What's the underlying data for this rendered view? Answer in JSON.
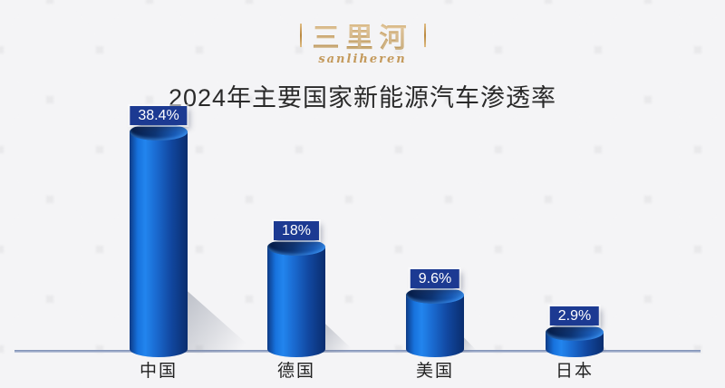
{
  "logo": {
    "cn": "三里河",
    "en": "sanliheren",
    "accent_gold": "#c59a58"
  },
  "chart_data": {
    "type": "bar",
    "title": "2024年主要国家新能源汽车渗透率",
    "categories": [
      "中国",
      "德国",
      "美国",
      "日本"
    ],
    "values": [
      38.4,
      18,
      9.6,
      2.9
    ],
    "value_labels": [
      "38.4%",
      "18%",
      "9.6%",
      "2.9%"
    ],
    "unit": "%",
    "xlabel": "",
    "ylabel": "",
    "ylim": [
      0,
      40
    ],
    "grid": false,
    "legend": "none",
    "bar_style": "3d-cylinder",
    "bar_color": "#1a6ad0",
    "badge_color": "#1c3a92",
    "baseline_color": "#8292b8",
    "background_color": "#e9e9eb",
    "title_color": "#2a2a2a"
  }
}
